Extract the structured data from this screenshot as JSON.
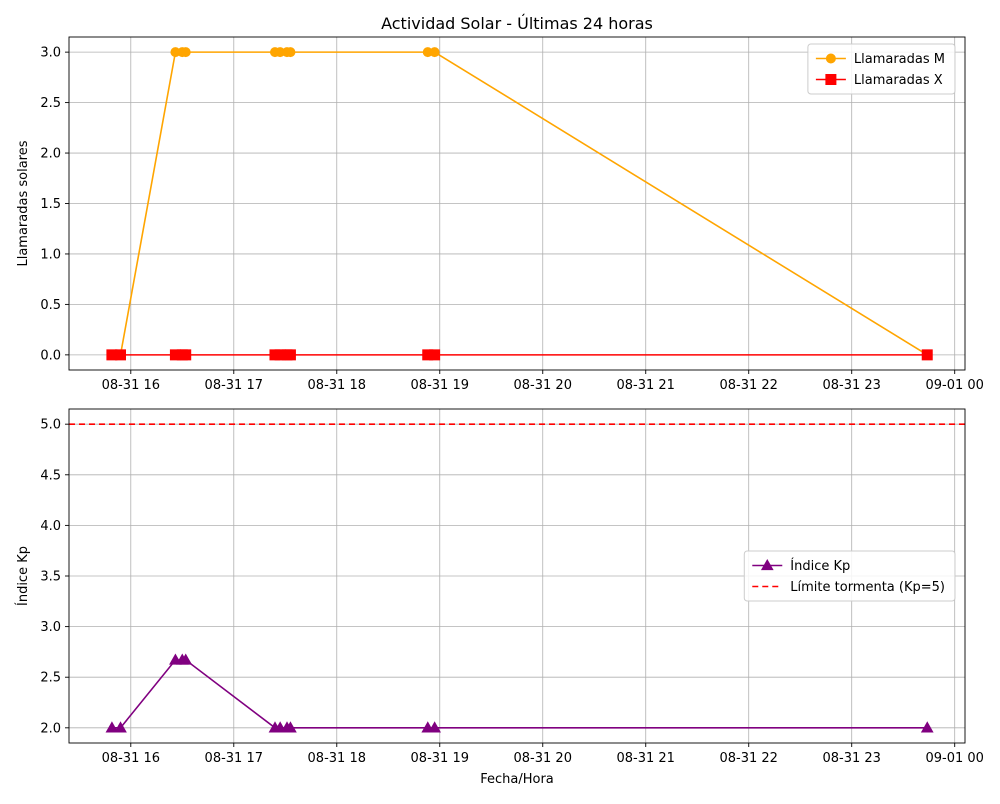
{
  "chart_data": [
    {
      "type": "line",
      "title": "Actividad Solar - Últimas 24 horas",
      "xlabel": "",
      "ylabel": "Llamaradas solares",
      "x_axis_type": "datetime",
      "xlim": [
        "2025-08-31T15:24",
        "2025-09-01T00:06"
      ],
      "ylim": [
        -0.15,
        3.15
      ],
      "x_ticks": [
        "2025-08-31T16:00",
        "2025-08-31T17:00",
        "2025-08-31T18:00",
        "2025-08-31T19:00",
        "2025-08-31T20:00",
        "2025-08-31T21:00",
        "2025-08-31T22:00",
        "2025-08-31T23:00",
        "2025-09-01T00:00"
      ],
      "x_tick_labels": [
        "08-31 16",
        "08-31 17",
        "08-31 18",
        "08-31 19",
        "08-31 20",
        "08-31 21",
        "08-31 22",
        "08-31 23",
        "09-01 00"
      ],
      "y_ticks": [
        0.0,
        0.5,
        1.0,
        1.5,
        2.0,
        2.5,
        3.0
      ],
      "y_tick_labels": [
        "0.0",
        "0.5",
        "1.0",
        "1.5",
        "2.0",
        "2.5",
        "3.0"
      ],
      "grid": true,
      "legend_position": "top-right",
      "x": [
        "2025-08-31T15:49",
        "2025-08-31T15:54",
        "2025-08-31T16:26",
        "2025-08-31T16:30",
        "2025-08-31T16:32",
        "2025-08-31T17:24",
        "2025-08-31T17:27",
        "2025-08-31T17:31",
        "2025-08-31T17:33",
        "2025-08-31T18:53",
        "2025-08-31T18:57",
        "2025-08-31T23:44"
      ],
      "series": [
        {
          "name": "Llamaradas M",
          "color": "#FFA500",
          "marker": "circle",
          "values": [
            0,
            0,
            3,
            3,
            3,
            3,
            3,
            3,
            3,
            3,
            3,
            0
          ]
        },
        {
          "name": "Llamaradas X",
          "color": "#FF0000",
          "marker": "square",
          "values": [
            0,
            0,
            0,
            0,
            0,
            0,
            0,
            0,
            0,
            0,
            0,
            0
          ]
        }
      ]
    },
    {
      "type": "line",
      "title": "",
      "xlabel": "Fecha/Hora",
      "ylabel": "Índice Kp",
      "x_axis_type": "datetime",
      "xlim": [
        "2025-08-31T15:24",
        "2025-09-01T00:06"
      ],
      "ylim": [
        1.85,
        5.15
      ],
      "x_ticks": [
        "2025-08-31T16:00",
        "2025-08-31T17:00",
        "2025-08-31T18:00",
        "2025-08-31T19:00",
        "2025-08-31T20:00",
        "2025-08-31T21:00",
        "2025-08-31T22:00",
        "2025-08-31T23:00",
        "2025-09-01T00:00"
      ],
      "x_tick_labels": [
        "08-31 16",
        "08-31 17",
        "08-31 18",
        "08-31 19",
        "08-31 20",
        "08-31 21",
        "08-31 22",
        "08-31 23",
        "09-01 00"
      ],
      "y_ticks": [
        2.0,
        2.5,
        3.0,
        3.5,
        4.0,
        4.5,
        5.0
      ],
      "y_tick_labels": [
        "2.0",
        "2.5",
        "3.0",
        "3.5",
        "4.0",
        "4.5",
        "5.0"
      ],
      "grid": true,
      "legend_position": "center-right",
      "x": [
        "2025-08-31T15:49",
        "2025-08-31T15:54",
        "2025-08-31T16:26",
        "2025-08-31T16:30",
        "2025-08-31T16:32",
        "2025-08-31T17:24",
        "2025-08-31T17:27",
        "2025-08-31T17:31",
        "2025-08-31T17:33",
        "2025-08-31T18:53",
        "2025-08-31T18:57",
        "2025-08-31T23:44"
      ],
      "series": [
        {
          "name": "Índice Kp",
          "color": "#800080",
          "marker": "triangle",
          "values": [
            2.0,
            2.0,
            2.67,
            2.67,
            2.67,
            2.0,
            2.0,
            2.0,
            2.0,
            2.0,
            2.0,
            2.0
          ]
        }
      ],
      "reference_lines": [
        {
          "name": "Límite tormenta (Kp=5)",
          "color": "#FF0000",
          "style": "dashed",
          "y": 5.0
        }
      ]
    }
  ]
}
